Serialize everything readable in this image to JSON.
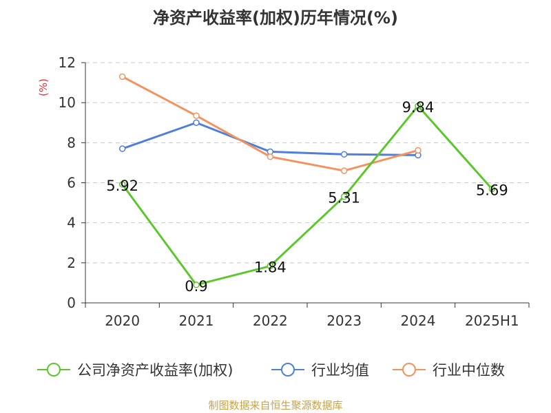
{
  "chart_data": {
    "type": "line",
    "title": "净资产收益率(加权)历年情况(%)",
    "ylabel": "(%)",
    "categories": [
      "2020",
      "2021",
      "2022",
      "2023",
      "2024",
      "2025H1"
    ],
    "yticks": [
      "0",
      "2",
      "4",
      "6",
      "8",
      "10",
      "12"
    ],
    "ylim": [
      0,
      12
    ],
    "grid": true,
    "legend_position": "bottom",
    "series": [
      {
        "name": "公司净资产收益率(加权)",
        "color": "#5cc72b",
        "values": [
          5.92,
          0.9,
          1.84,
          5.31,
          9.84,
          5.69
        ],
        "labels": [
          "5.92",
          "0.9",
          "1.84",
          "5.31",
          "9.84",
          "5.69"
        ]
      },
      {
        "name": "行业均值",
        "color": "#4f7fdb",
        "values": [
          7.7,
          9.0,
          7.55,
          7.42,
          7.38,
          null
        ]
      },
      {
        "name": "行业中位数",
        "color": "#f4925e",
        "values": [
          11.3,
          9.35,
          7.3,
          6.6,
          7.62,
          null
        ]
      }
    ]
  },
  "footer": {
    "source": "制图数据来自恒生聚源数据库"
  }
}
